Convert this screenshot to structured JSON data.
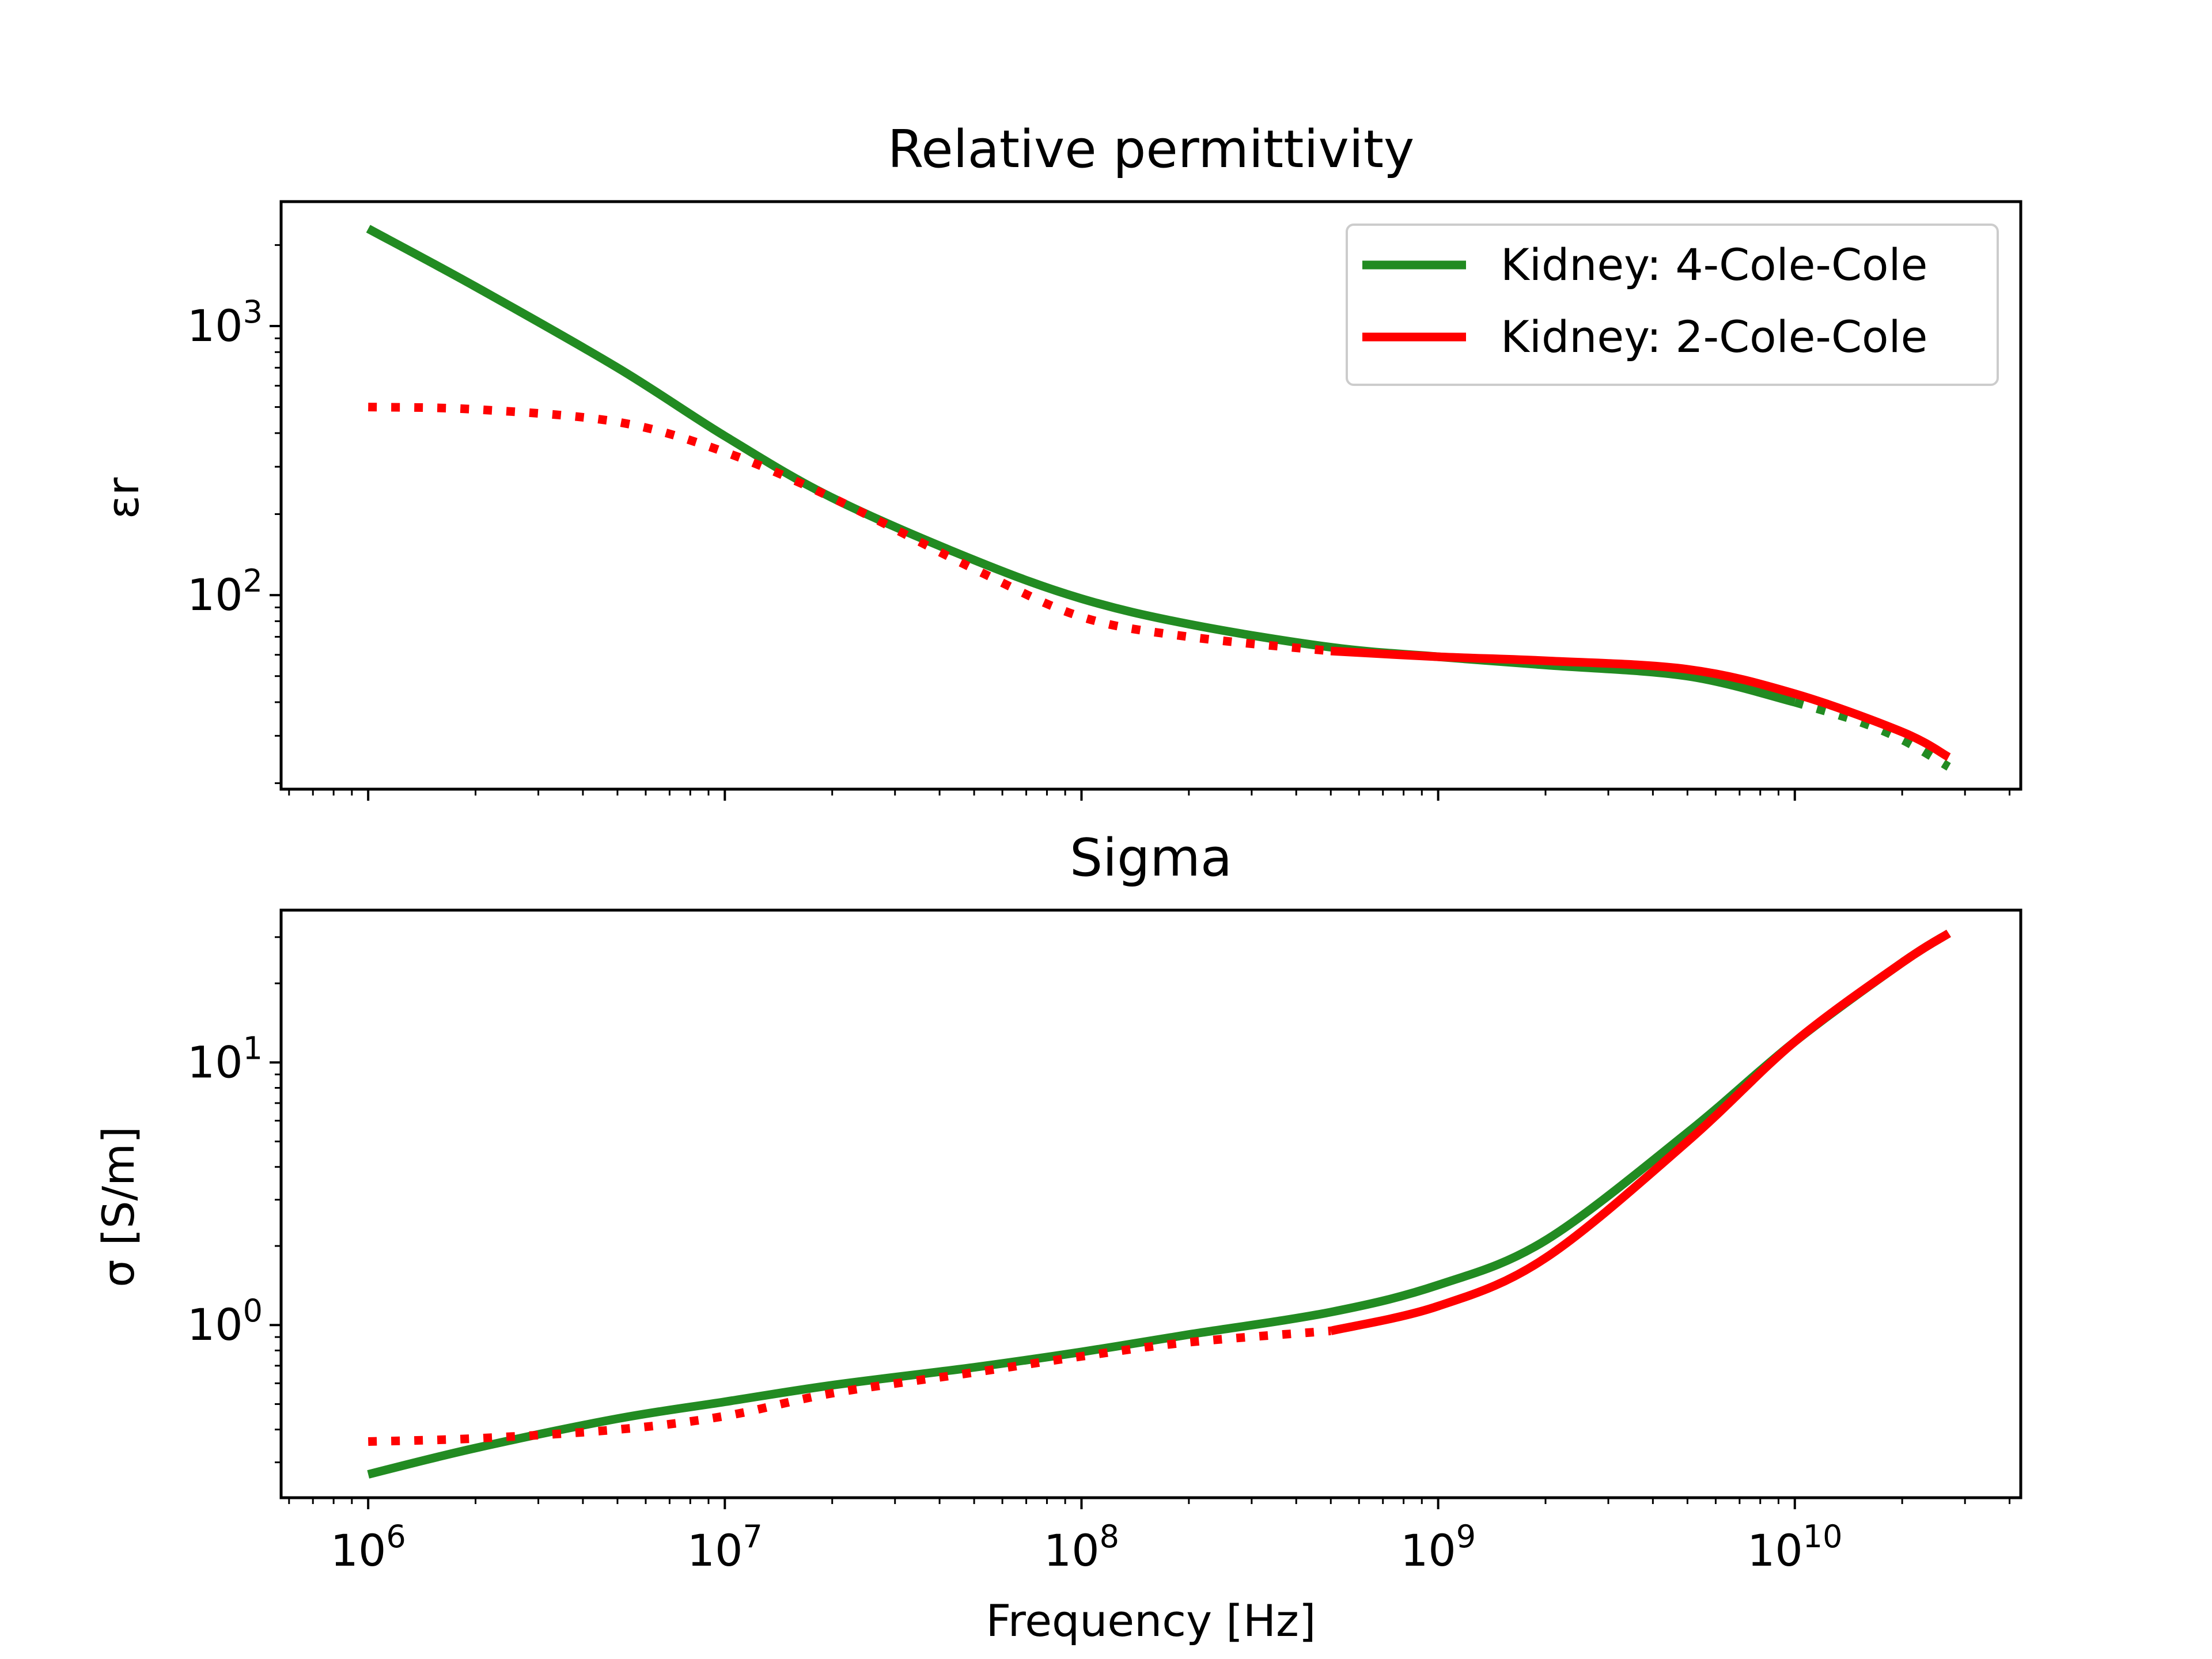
{
  "chart_data": [
    {
      "type": "line",
      "title": "Relative permittivity",
      "xlabel": "",
      "ylabel": "εr",
      "xscale": "log",
      "yscale": "log",
      "xlim": [
        570000,
        43000000000
      ],
      "ylim": [
        19,
        2900
      ],
      "x_ticks": [
        {
          "base": "10",
          "exp": "6"
        },
        {
          "base": "10",
          "exp": "7"
        },
        {
          "base": "10",
          "exp": "8"
        },
        {
          "base": "10",
          "exp": "9"
        },
        {
          "base": "10",
          "exp": "10"
        }
      ],
      "y_ticks": [
        {
          "value": 100,
          "base": "10",
          "exp": "2"
        },
        {
          "value": 1000,
          "base": "10",
          "exp": "3"
        }
      ],
      "legend": {
        "placement": "top-right",
        "entries": [
          {
            "label": "Kidney: 4-Cole-Cole",
            "color": "#228b22"
          },
          {
            "label": "Kidney: 2-Cole-Cole",
            "color": "#ff0000"
          }
        ]
      },
      "series": [
        {
          "name": "Kidney: 4-Cole-Cole",
          "color": "#228b22",
          "x": [
            1000000,
            2000000,
            5000000,
            10000000,
            20000000,
            50000000,
            100000000,
            200000000,
            500000000,
            1000000000,
            2000000000,
            5000000000,
            10000000000
          ],
          "y": [
            2300,
            1400,
            700,
            390,
            230,
            135,
            97,
            78,
            64,
            59,
            55,
            50,
            40
          ],
          "dashed": {
            "x": [
              10000000000,
              15000000000,
              20000000000,
              27000000000
            ],
            "y": [
              40,
              34,
              29,
              23
            ]
          }
        },
        {
          "name": "Kidney: 2-Cole-Cole",
          "color": "#ff0000",
          "x": [
            500000000,
            1000000000,
            2000000000,
            5000000000,
            10000000000,
            20000000000,
            27000000000
          ],
          "y": [
            62,
            59,
            57,
            53,
            43,
            31,
            25
          ],
          "dashed": {
            "x": [
              1000000,
              2000000,
              5000000,
              10000000,
              20000000,
              50000000,
              100000000,
              200000000,
              500000000
            ],
            "y": [
              500,
              490,
              440,
              340,
              230,
              125,
              83,
              70,
              62
            ]
          }
        }
      ]
    },
    {
      "type": "line",
      "title": "Sigma",
      "xlabel": "Frequency [Hz]",
      "ylabel": "σ [S/m]",
      "xscale": "log",
      "yscale": "log",
      "xlim": [
        570000,
        43000000000
      ],
      "ylim": [
        0.22,
        38
      ],
      "x_ticks": [
        {
          "base": "10",
          "exp": "6"
        },
        {
          "base": "10",
          "exp": "7"
        },
        {
          "base": "10",
          "exp": "8"
        },
        {
          "base": "10",
          "exp": "9"
        },
        {
          "base": "10",
          "exp": "10"
        }
      ],
      "y_ticks": [
        {
          "value": 1,
          "base": "10",
          "exp": "0"
        },
        {
          "value": 10,
          "base": "10",
          "exp": "1"
        }
      ],
      "series": [
        {
          "name": "Kidney: 4-Cole-Cole",
          "color": "#228b22",
          "x": [
            1000000,
            2000000,
            5000000,
            10000000,
            20000000,
            50000000,
            100000000,
            200000000,
            500000000,
            1000000000,
            2000000000,
            5000000000,
            10000000000,
            20000000000,
            27000000000
          ],
          "y": [
            0.27,
            0.34,
            0.44,
            0.51,
            0.59,
            0.69,
            0.79,
            0.92,
            1.12,
            1.42,
            2.1,
            5.4,
            12,
            24,
            31
          ],
          "dashed": null
        },
        {
          "name": "Kidney: 2-Cole-Cole",
          "color": "#ff0000",
          "x": [
            500000000,
            1000000000,
            2000000000,
            5000000000,
            10000000000,
            20000000000,
            27000000000
          ],
          "y": [
            0.95,
            1.18,
            1.8,
            5.0,
            12,
            24,
            31
          ],
          "dashed": {
            "x": [
              1000000,
              2000000,
              5000000,
              10000000,
              20000000,
              50000000,
              100000000,
              200000000,
              500000000
            ],
            "y": [
              0.36,
              0.37,
              0.4,
              0.45,
              0.55,
              0.66,
              0.76,
              0.86,
              0.95
            ]
          }
        }
      ]
    }
  ]
}
